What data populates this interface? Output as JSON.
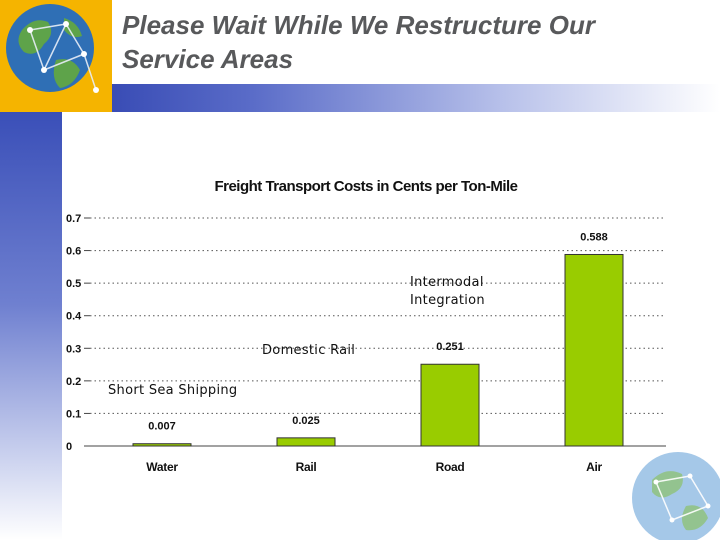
{
  "slide": {
    "title_line1": "Please Wait While We Restructure Our",
    "title_line2": "Service Areas"
  },
  "colors": {
    "bar": "#99cc00",
    "bar_outline": "#333333",
    "accent_blue": "#1f33a6",
    "gold": "#f5b400"
  },
  "icons": [
    "globe-network-icon",
    "globe-network-icon"
  ],
  "chart_data": {
    "type": "bar",
    "title": "Freight Transport Costs in Cents per Ton-Mile",
    "categories": [
      "Water",
      "Rail",
      "Road",
      "Air"
    ],
    "values": [
      0.007,
      0.025,
      0.251,
      0.588
    ],
    "value_labels": [
      "0.007",
      "0.025",
      "0.251",
      "0.588"
    ],
    "ylim": [
      0,
      0.7
    ],
    "yticks": [
      0,
      0.1,
      0.2,
      0.3,
      0.4,
      0.5,
      0.6,
      0.7
    ],
    "ytick_labels": [
      "0",
      "0.1",
      "0.2",
      "0.3",
      "0.4",
      "0.5",
      "0.6",
      "0.7"
    ],
    "grid": true,
    "legend": "none",
    "annotations": [
      "Short Sea Shipping",
      "Domestic Rail",
      "Intermodal Integration"
    ]
  }
}
